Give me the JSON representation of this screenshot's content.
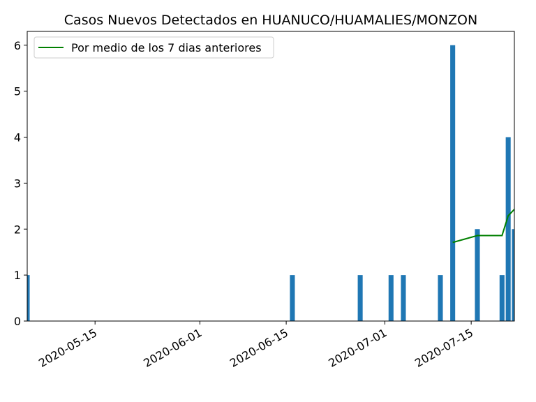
{
  "chart_data": {
    "type": "bar",
    "title": "Casos Nuevos Detectados en HUANUCO/HUAMALIES/MONZON",
    "xlabel": "",
    "ylabel": "",
    "x_range": [
      "2020-05-04",
      "2020-07-22"
    ],
    "ylim": [
      0,
      6.3
    ],
    "y_ticks": [
      0,
      1,
      2,
      3,
      4,
      5,
      6
    ],
    "x_ticks": [
      "2020-05-15",
      "2020-06-01",
      "2020-06-15",
      "2020-07-01",
      "2020-07-15"
    ],
    "grid": false,
    "legend_position": "upper-left",
    "bar_color": "#1f77b4",
    "line_color": "#008000",
    "bars": [
      {
        "date": "2020-05-04",
        "value": 1
      },
      {
        "date": "2020-06-16",
        "value": 1
      },
      {
        "date": "2020-06-27",
        "value": 1
      },
      {
        "date": "2020-07-02",
        "value": 1
      },
      {
        "date": "2020-07-04",
        "value": 1
      },
      {
        "date": "2020-07-10",
        "value": 1
      },
      {
        "date": "2020-07-12",
        "value": 6
      },
      {
        "date": "2020-07-16",
        "value": 2
      },
      {
        "date": "2020-07-20",
        "value": 1
      },
      {
        "date": "2020-07-21",
        "value": 4
      },
      {
        "date": "2020-07-22",
        "value": 2
      }
    ],
    "series": [
      {
        "name": "Por medio de los 7 dias anteriores",
        "type": "line",
        "points": [
          {
            "date": "2020-07-12",
            "value": 1.71
          },
          {
            "date": "2020-07-16",
            "value": 1.86
          },
          {
            "date": "2020-07-20",
            "value": 1.86
          },
          {
            "date": "2020-07-21",
            "value": 2.29
          },
          {
            "date": "2020-07-22",
            "value": 2.43
          }
        ]
      }
    ]
  }
}
